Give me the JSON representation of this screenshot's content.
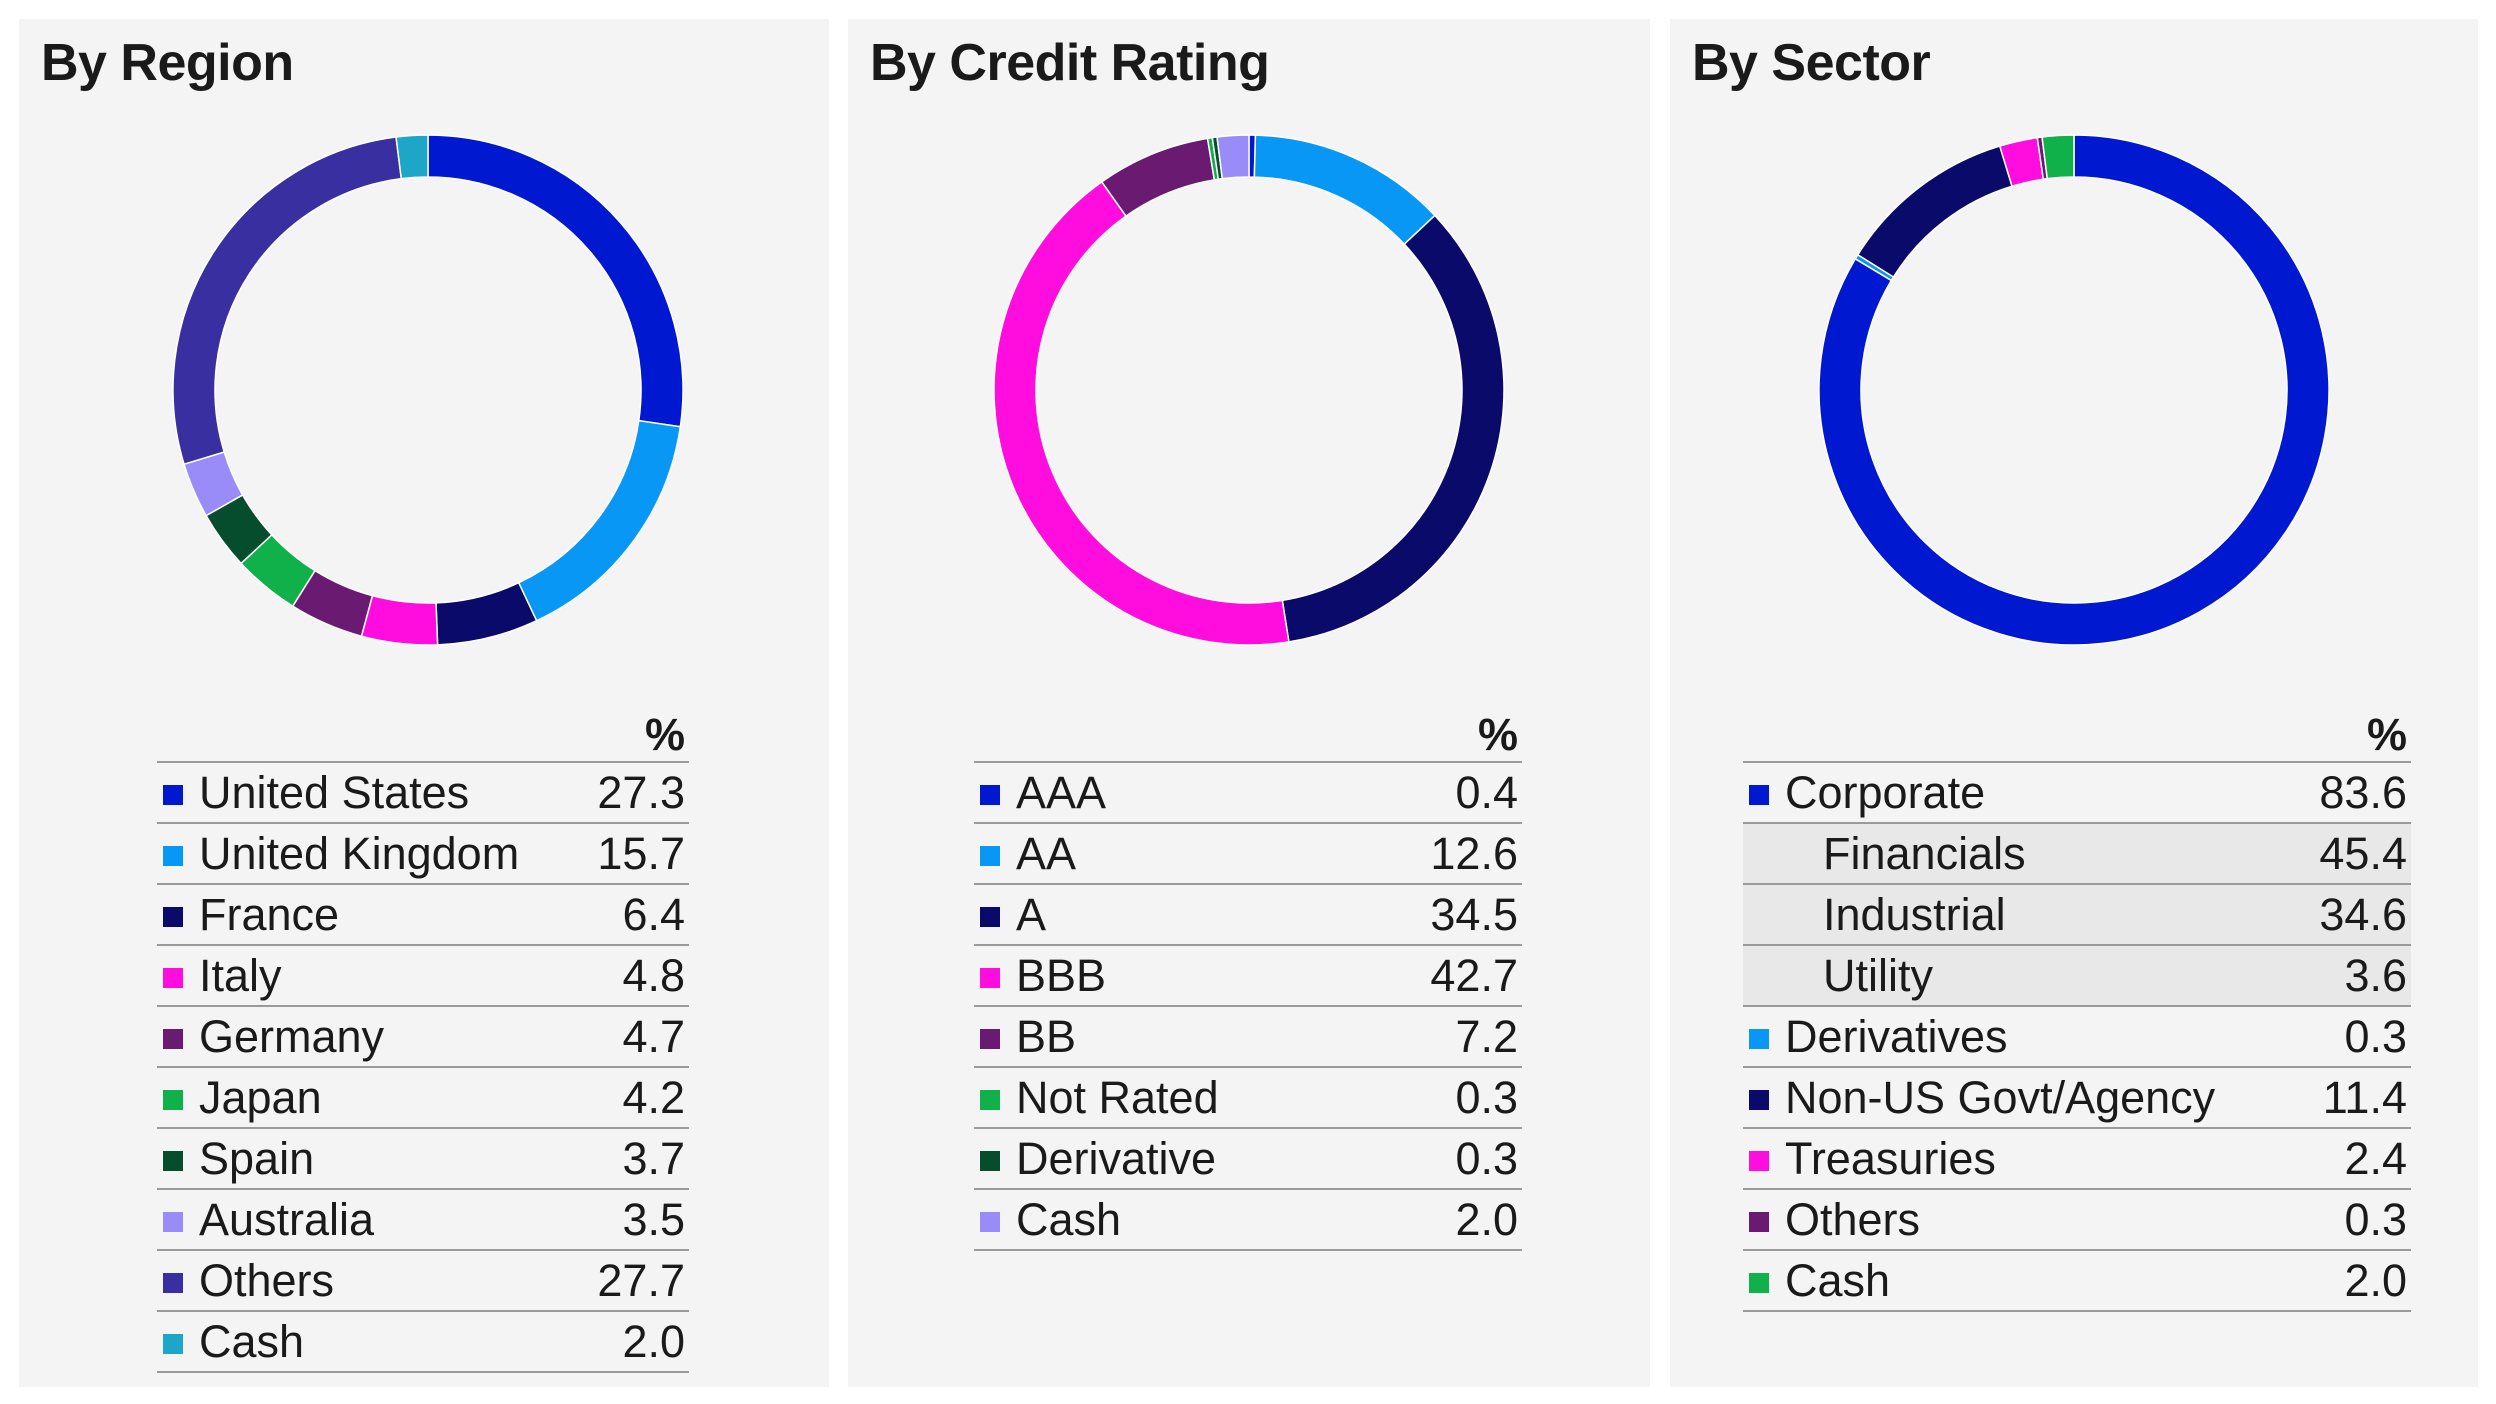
{
  "chart_data": [
    {
      "type": "pie",
      "title": "By Region",
      "unit_header": "%",
      "categories": [
        "United States",
        "United Kingdom",
        "France",
        "Italy",
        "Germany",
        "Japan",
        "Spain",
        "Australia",
        "Others",
        "Cash"
      ],
      "values": [
        "27.3",
        "15.7",
        "6.4",
        "4.8",
        "4.7",
        "4.2",
        "3.7",
        "3.5",
        "27.7",
        "2.0"
      ],
      "colors": [
        "#0018d0",
        "#0897f5",
        "#0a0a6b",
        "#ff0ddf",
        "#6b1a72",
        "#10b04a",
        "#064d2e",
        "#9a8cf8",
        "#3a2fa0",
        "#1da6c8"
      ]
    },
    {
      "type": "pie",
      "title": "By Credit Rating",
      "unit_header": "%",
      "categories": [
        "AAA",
        "AA",
        "A",
        "BBB",
        "BB",
        "Not Rated",
        "Derivative",
        "Cash"
      ],
      "values": [
        "0.4",
        "12.6",
        "34.5",
        "42.7",
        "7.2",
        "0.3",
        "0.3",
        "2.0"
      ],
      "colors": [
        "#0018d0",
        "#0897f5",
        "#0a0a6b",
        "#ff0ddf",
        "#6b1a72",
        "#10b04a",
        "#064d2e",
        "#9a8cf8"
      ]
    },
    {
      "type": "pie",
      "title": "By Sector",
      "unit_header": "%",
      "categories": [
        "Corporate",
        "Derivatives",
        "Non-US Govt/Agency",
        "Treasuries",
        "Others",
        "Cash"
      ],
      "values": [
        "83.6",
        "0.3",
        "11.4",
        "2.4",
        "0.3",
        "2.0"
      ],
      "colors": [
        "#0018d0",
        "#0897f5",
        "#0a0a6b",
        "#ff0ddf",
        "#6b1a72",
        "#10b04a"
      ],
      "sub_items": {
        "Corporate": [
          {
            "label": "Financials",
            "value": "45.4"
          },
          {
            "label": "Industrial",
            "value": "34.6"
          },
          {
            "label": "Utility",
            "value": "3.6"
          }
        ]
      }
    }
  ]
}
